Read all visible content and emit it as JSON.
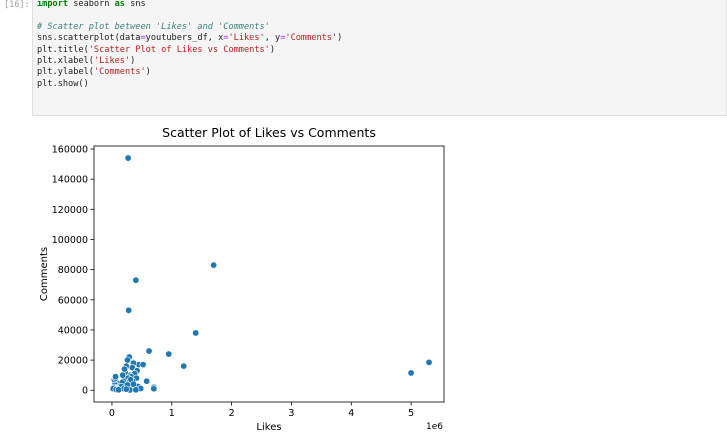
{
  "cell": {
    "prompt": "[16]:",
    "code_lines": [
      [
        {
          "t": "import",
          "c": "kw"
        },
        {
          "t": " seaborn ",
          "c": ""
        },
        {
          "t": "as",
          "c": "kw"
        },
        {
          "t": " sns",
          "c": ""
        }
      ],
      [],
      [
        {
          "t": "# Scatter plot between 'Likes' and 'Comments'",
          "c": "cm"
        }
      ],
      [
        {
          "t": "sns.scatterplot(data",
          "c": ""
        },
        {
          "t": "=",
          "c": "op"
        },
        {
          "t": "youtubers_df, x",
          "c": ""
        },
        {
          "t": "=",
          "c": "op"
        },
        {
          "t": "'Likes'",
          "c": "st"
        },
        {
          "t": ", y",
          "c": ""
        },
        {
          "t": "=",
          "c": "op"
        },
        {
          "t": "'Comments'",
          "c": "st"
        },
        {
          "t": ")",
          "c": ""
        }
      ],
      [
        {
          "t": "plt.title(",
          "c": ""
        },
        {
          "t": "'Scatter Plot of Likes vs Comments'",
          "c": "st"
        },
        {
          "t": ")",
          "c": ""
        }
      ],
      [
        {
          "t": "plt.xlabel(",
          "c": ""
        },
        {
          "t": "'Likes'",
          "c": "st"
        },
        {
          "t": ")",
          "c": ""
        }
      ],
      [
        {
          "t": "plt.ylabel(",
          "c": ""
        },
        {
          "t": "'Comments'",
          "c": "st"
        },
        {
          "t": ")",
          "c": ""
        }
      ],
      [
        {
          "t": "plt.show()",
          "c": ""
        }
      ]
    ]
  },
  "colors": {
    "point": "#1f77b4",
    "point_edge": "#ffffff",
    "axes": "#000000"
  },
  "chart_data": {
    "type": "scatter",
    "title": "Scatter Plot of Likes vs Comments",
    "xlabel": "Likes",
    "ylabel": "Comments",
    "x_offset_label": "1e6",
    "xlim": [
      -0.3,
      5.55
    ],
    "ylim": [
      -7800,
      162000
    ],
    "xticks": [
      0,
      1,
      2,
      3,
      4,
      5
    ],
    "yticks": [
      0,
      20000,
      40000,
      60000,
      80000,
      100000,
      120000,
      140000,
      160000
    ],
    "grid": false,
    "x": [
      0.27,
      0.4,
      0.28,
      1.7,
      1.4,
      0.62,
      0.95,
      1.2,
      5.3,
      5.0,
      0.45,
      0.52,
      0.36,
      0.29,
      0.26,
      0.34,
      0.42,
      0.24,
      0.3,
      0.38,
      0.22,
      0.32,
      0.27,
      0.41,
      0.35,
      0.31,
      0.23,
      0.19,
      0.15,
      0.12,
      0.08,
      0.05,
      0.03,
      0.02,
      0.04,
      0.06,
      0.1,
      0.14,
      0.17,
      0.09,
      0.07,
      0.13,
      0.16,
      0.2,
      0.11,
      0.25,
      0.28,
      0.33,
      0.37,
      0.44,
      0.48,
      0.58,
      0.7,
      0.7,
      0.21,
      0.18,
      0.06,
      0.26,
      0.36,
      0.3,
      0.4,
      0.24
    ],
    "y": [
      154000,
      73000,
      53000,
      83000,
      38000,
      26000,
      24000,
      16000,
      18500,
      11500,
      17000,
      17000,
      18000,
      22000,
      20000,
      15000,
      13000,
      16000,
      10000,
      11000,
      12000,
      9000,
      8000,
      8000,
      6000,
      7000,
      5000,
      6000,
      4000,
      3000,
      5000,
      4000,
      2000,
      1000,
      7000,
      8000,
      2000,
      3000,
      5000,
      1000,
      500,
      1500,
      2500,
      1000,
      300,
      500,
      2000,
      1500,
      800,
      2500,
      1200,
      6000,
      2000,
      1000,
      14000,
      10000,
      9000,
      3500,
      4000,
      200,
      300,
      700
    ]
  }
}
